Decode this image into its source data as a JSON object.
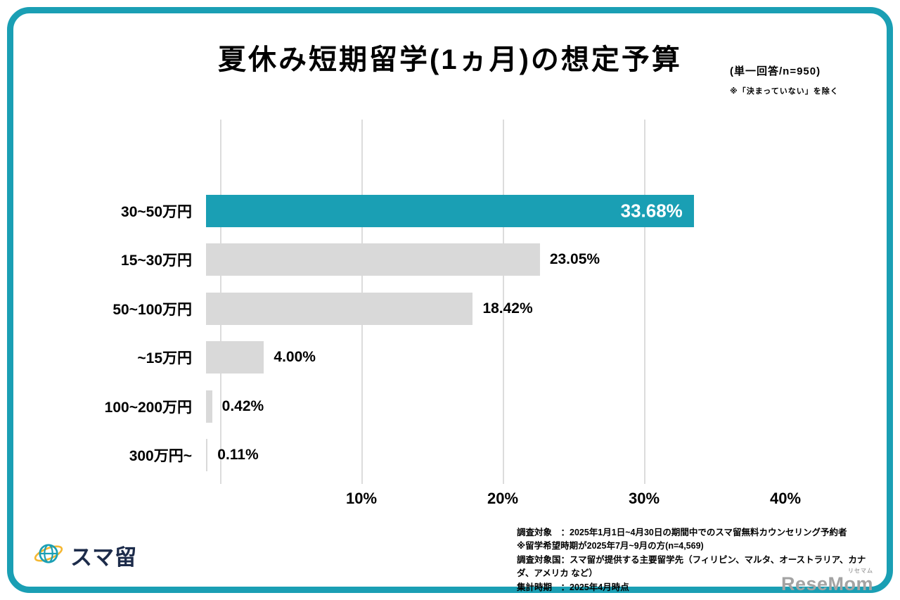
{
  "colors": {
    "accent": "#1a9fb4",
    "bar_gray": "#d9d9d9",
    "logo_navy": "#1c2b4a",
    "watermark_gray": "#a3a3a3",
    "gridline": "#dcdcdc"
  },
  "header": {
    "title": "夏休み短期留学(1ヵ月)の想定予算",
    "subtitle": "(単一回答/n=950)",
    "note": "※「決まっていない」を除く"
  },
  "chart_data": {
    "type": "bar",
    "orientation": "horizontal",
    "title": "夏休み短期留学(1ヵ月)の想定予算",
    "categories": [
      "30~50万円",
      "15~30万円",
      "50~100万円",
      "~15万円",
      "100~200万円",
      "300万円~"
    ],
    "values": [
      33.68,
      23.05,
      18.42,
      4.0,
      0.42,
      0.11
    ],
    "value_labels": [
      "33.68%",
      "23.05%",
      "18.42%",
      "4.00%",
      "0.42%",
      "0.11%"
    ],
    "x_ticks": [
      "10%",
      "20%",
      "30%",
      "40%"
    ],
    "xlim": [
      0,
      40
    ],
    "grid": true,
    "highlight_index": 0,
    "highlight_color": "#1a9fb4",
    "bar_color": "#d9d9d9",
    "highlight_text_color": "#ffffff"
  },
  "footer": {
    "notes": [
      "調査対象　：2025年1月1日~4月30日の期間中でのスマ留無料カウンセリング予約者",
      "※留学希望時期が2025年7月~9月の方(n=4,569)",
      "調査対象国：スマ留が提供する主要留学先（フィリピン、マルタ、オーストラリア、カナダ、アメリカ など）",
      "集計時期　：2025年4月時点"
    ],
    "logo_text": "スマ留",
    "watermark": "ReseMom",
    "watermark_ruby": "リセマム"
  }
}
